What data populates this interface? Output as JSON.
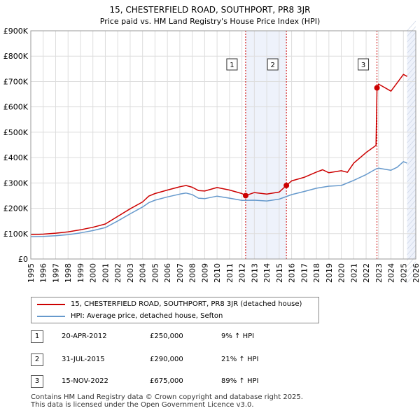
{
  "chart_data": {
    "type": "line",
    "title": "15, CHESTERFIELD ROAD, SOUTHPORT, PR8 3JR",
    "subtitle": "Price paid vs. HM Land Registry's House Price Index (HPI)",
    "xlim": [
      1995,
      2026
    ],
    "ylim": [
      0,
      900000
    ],
    "x_ticks": [
      1995,
      1996,
      1997,
      1998,
      1999,
      2000,
      2001,
      2002,
      2003,
      2004,
      2005,
      2006,
      2007,
      2008,
      2009,
      2010,
      2011,
      2012,
      2013,
      2014,
      2015,
      2016,
      2017,
      2018,
      2019,
      2020,
      2021,
      2022,
      2023,
      2024,
      2025,
      2026
    ],
    "y_ticks": [
      {
        "value": 0,
        "label": "£0"
      },
      {
        "value": 100000,
        "label": "£100K"
      },
      {
        "value": 200000,
        "label": "£200K"
      },
      {
        "value": 300000,
        "label": "£300K"
      },
      {
        "value": 400000,
        "label": "£400K"
      },
      {
        "value": 500000,
        "label": "£500K"
      },
      {
        "value": 600000,
        "label": "£600K"
      },
      {
        "value": 700000,
        "label": "£700K"
      },
      {
        "value": 800000,
        "label": "£800K"
      },
      {
        "value": 900000,
        "label": "£900K"
      }
    ],
    "grid": true,
    "series": [
      {
        "name": "15, CHESTERFIELD ROAD, SOUTHPORT, PR8 3JR (detached house)",
        "color": "#cc0000",
        "x": [
          1995,
          1996,
          1997,
          1998,
          1999,
          2000,
          2001,
          2002,
          2003,
          2004,
          2004.5,
          2005,
          2006,
          2007,
          2007.5,
          2008,
          2008.5,
          2009,
          2010,
          2011,
          2012,
          2012.3,
          2013,
          2014,
          2015,
          2015.58,
          2016,
          2017,
          2018,
          2018.5,
          2019,
          2020,
          2020.5,
          2021,
          2022,
          2022.8,
          2022.875,
          2023,
          2024,
          2024.5,
          2025,
          2025.3
        ],
        "values": [
          96000,
          98000,
          102000,
          107000,
          115000,
          125000,
          138000,
          168000,
          198000,
          225000,
          248000,
          258000,
          272000,
          285000,
          290000,
          283000,
          270000,
          268000,
          282000,
          272000,
          258000,
          250000,
          262000,
          256000,
          264000,
          290000,
          308000,
          322000,
          343000,
          352000,
          340000,
          348000,
          342000,
          378000,
          420000,
          448000,
          675000,
          690000,
          662000,
          695000,
          728000,
          720000
        ]
      },
      {
        "name": "HPI: Average price, detached house, Sefton",
        "color": "#6699cc",
        "x": [
          1995,
          1996,
          1997,
          1998,
          1999,
          2000,
          2001,
          2002,
          2003,
          2004,
          2004.5,
          2005,
          2006,
          2007,
          2007.5,
          2008,
          2008.5,
          2009,
          2010,
          2011,
          2012,
          2013,
          2014,
          2015,
          2016,
          2017,
          2018,
          2019,
          2020,
          2021,
          2022,
          2022.8,
          2023,
          2024,
          2024.5,
          2025,
          2025.3
        ],
        "values": [
          88000,
          89000,
          92000,
          96000,
          103000,
          112000,
          124000,
          150000,
          178000,
          205000,
          222000,
          232000,
          245000,
          256000,
          260000,
          254000,
          240000,
          238000,
          248000,
          240000,
          231000,
          232000,
          229000,
          236000,
          254000,
          266000,
          279000,
          287000,
          290000,
          310000,
          333000,
          355000,
          358000,
          350000,
          362000,
          384000,
          378000
        ]
      }
    ],
    "sales": [
      {
        "num": "1",
        "x": 2012.3,
        "value": 250000,
        "date": "20-APR-2012",
        "price": "£250,000",
        "hpi": "9% ↑ HPI"
      },
      {
        "num": "2",
        "x": 2015.58,
        "value": 290000,
        "date": "31-JUL-2015",
        "price": "£290,000",
        "hpi": "21% ↑ HPI"
      },
      {
        "num": "3",
        "x": 2022.875,
        "value": 675000,
        "date": "15-NOV-2022",
        "price": "£675,000",
        "hpi": "89% ↑ HPI"
      }
    ],
    "shaded_periods": [
      [
        2012.3,
        2015.58
      ],
      [
        2025.3,
        2026
      ]
    ],
    "legend": [
      {
        "label": "15, CHESTERFIELD ROAD, SOUTHPORT, PR8 3JR (detached house)",
        "color": "#cc0000"
      },
      {
        "label": "HPI: Average price, detached house, Sefton",
        "color": "#6699cc"
      }
    ]
  },
  "footer": {
    "line1": "Contains HM Land Registry data © Crown copyright and database right 2025.",
    "line2": "This data is licensed under the Open Government Licence v3.0."
  }
}
